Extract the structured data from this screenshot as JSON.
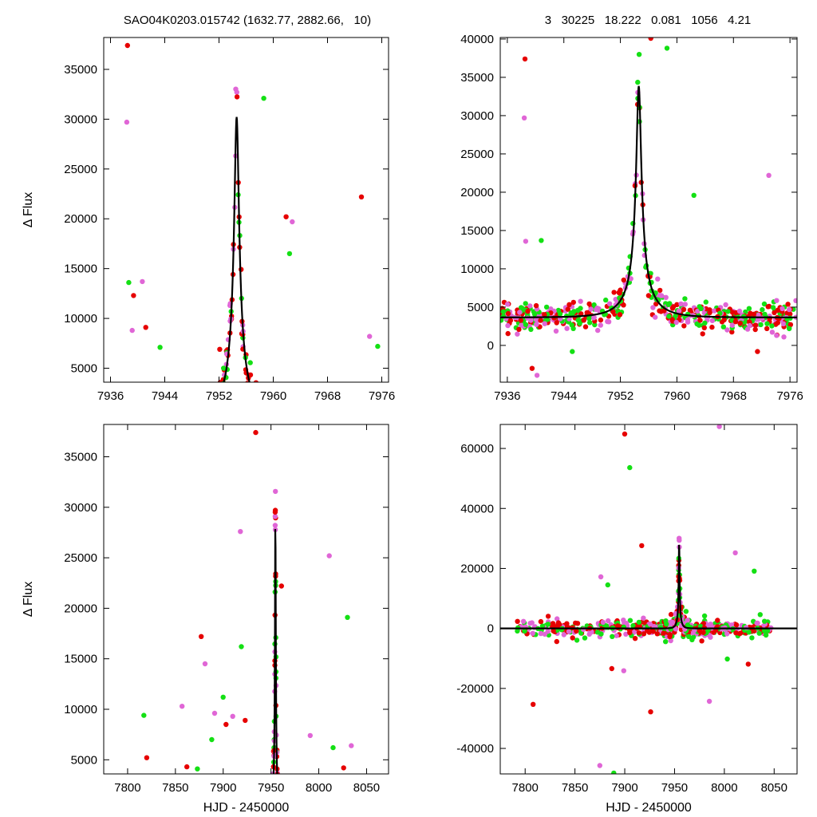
{
  "header": {
    "left_title": "SAO04K0203.015742 (1632.77, 2882.66,   10)",
    "right_title": "3   30225   18.222   0.081   1056   4.21"
  },
  "colors": {
    "red": "#e60000",
    "magenta": "#e066d6",
    "green": "#14e014",
    "model": "#000000"
  },
  "model": {
    "t0": 7954.6,
    "peak": 30225,
    "tE": 4.21,
    "u0": 0.081,
    "baseline_offset_right": 3650
  },
  "chart_data": [
    {
      "id": "top-left",
      "type": "scatter",
      "title": "",
      "xlabel": "",
      "ylabel": "Δ Flux",
      "xlim": [
        7935,
        7977
      ],
      "ylim": [
        3600,
        38200
      ],
      "xticks": [
        7936,
        7944,
        7952,
        7960,
        7968,
        7976
      ],
      "yticks": [
        5000,
        10000,
        15000,
        20000,
        25000,
        30000,
        35000
      ],
      "baseline": 0,
      "grid": false,
      "outliers": [
        [
          7938.5,
          37400
        ],
        [
          7938.4,
          29700
        ],
        [
          7938.7,
          13600
        ],
        [
          7939.4,
          12300
        ],
        [
          7940.7,
          13700
        ],
        [
          7958.6,
          32100
        ],
        [
          7961.9,
          20200
        ],
        [
          7962.8,
          19700
        ],
        [
          7962.4,
          16500
        ],
        [
          7973.0,
          22200
        ],
        [
          7974.2,
          8200
        ],
        [
          7975.4,
          7200
        ],
        [
          7941.2,
          9100
        ],
        [
          7939.2,
          8800
        ],
        [
          7943.3,
          7100
        ],
        [
          7952.1,
          6900
        ]
      ]
    },
    {
      "id": "top-right",
      "type": "scatter",
      "title": "",
      "xlabel": "",
      "ylabel": "",
      "xlim": [
        7935,
        7977
      ],
      "ylim": [
        -4800,
        40200
      ],
      "xticks": [
        7936,
        7944,
        7952,
        7960,
        7968,
        7976
      ],
      "yticks": [
        0,
        5000,
        10000,
        15000,
        20000,
        25000,
        30000,
        35000,
        40000
      ],
      "baseline": 3650,
      "grid": false,
      "outliers": [
        [
          7938.5,
          37400
        ],
        [
          7938.4,
          29700
        ],
        [
          7958.6,
          38800
        ],
        [
          7956.3,
          40100
        ],
        [
          7973.0,
          22200
        ],
        [
          7962.4,
          19600
        ],
        [
          7939.5,
          -3000
        ],
        [
          7940.2,
          -3900
        ],
        [
          7945.2,
          -800
        ],
        [
          7951.8,
          6900
        ],
        [
          7938.6,
          13600
        ],
        [
          7940.8,
          13700
        ],
        [
          7971.4,
          -800
        ],
        [
          7974.1,
          1300
        ]
      ]
    },
    {
      "id": "bottom-left",
      "type": "scatter",
      "title": "",
      "xlabel": "HJD - 2450000",
      "ylabel": "Δ Flux",
      "xlim": [
        7775,
        8073
      ],
      "ylim": [
        3600,
        38200
      ],
      "xticks": [
        7800,
        7850,
        7900,
        7950,
        8000,
        8050
      ],
      "yticks": [
        5000,
        10000,
        15000,
        20000,
        25000,
        30000,
        35000
      ],
      "baseline": 0,
      "grid": false,
      "outliers": [
        [
          7934,
          37400
        ],
        [
          7918,
          27600
        ],
        [
          7919,
          16200
        ],
        [
          7961,
          22200
        ],
        [
          8011,
          25200
        ],
        [
          8030,
          19100
        ],
        [
          7877,
          17200
        ],
        [
          7881,
          14500
        ],
        [
          7817,
          9400
        ],
        [
          7820,
          5200
        ],
        [
          7857,
          10300
        ],
        [
          7873,
          4100
        ],
        [
          7862,
          4300
        ],
        [
          7891,
          9600
        ],
        [
          7900,
          11200
        ],
        [
          7903,
          8500
        ],
        [
          7910,
          9300
        ],
        [
          7888,
          7000
        ],
        [
          7923,
          8900
        ],
        [
          7991,
          7400
        ],
        [
          8015,
          6200
        ],
        [
          8026,
          4200
        ],
        [
          8034,
          6400
        ]
      ]
    },
    {
      "id": "bottom-right",
      "type": "scatter",
      "title": "",
      "xlabel": "HJD - 2450000",
      "ylabel": "",
      "xlim": [
        7775,
        8073
      ],
      "ylim": [
        -48500,
        68000
      ],
      "xticks": [
        7800,
        7850,
        7900,
        7950,
        8000,
        8050
      ],
      "yticks": [
        -40000,
        -20000,
        0,
        20000,
        40000,
        60000
      ],
      "baseline": 0,
      "grid": false,
      "outliers": [
        [
          7900,
          64800
        ],
        [
          7995,
          67300
        ],
        [
          7905,
          53600
        ],
        [
          7808,
          -25300
        ],
        [
          7875,
          -45700
        ],
        [
          7889,
          -48200
        ],
        [
          7926,
          -27800
        ],
        [
          7985,
          -24300
        ],
        [
          8003,
          -10200
        ],
        [
          8024,
          -11900
        ],
        [
          7876,
          17200
        ],
        [
          7883,
          14500
        ],
        [
          7917,
          27600
        ],
        [
          8011,
          25200
        ],
        [
          8030,
          19100
        ],
        [
          7887,
          -13400
        ],
        [
          7899,
          -14100
        ],
        [
          7941,
          -4400
        ],
        [
          7939,
          -1600
        ]
      ]
    }
  ]
}
